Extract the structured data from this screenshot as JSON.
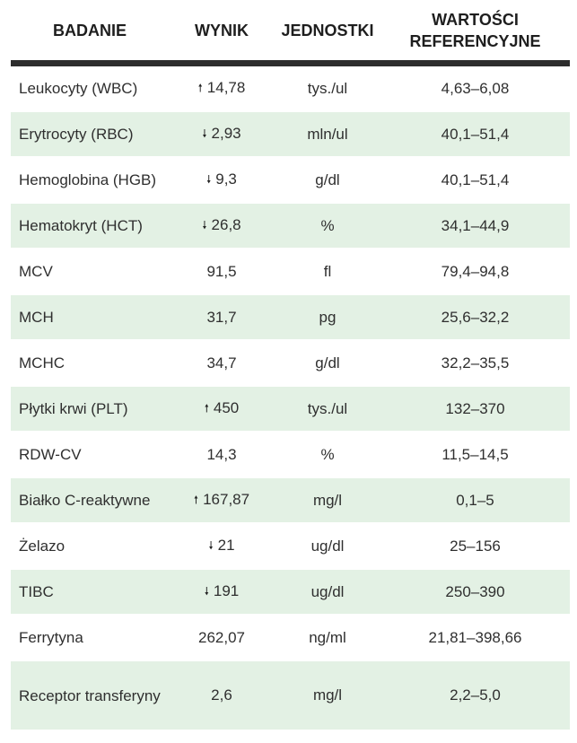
{
  "table": {
    "headers": {
      "test": "BADANIE",
      "result": "WYNIK",
      "units": "JEDNOSTKI",
      "reference_line1": "WARTOŚCI",
      "reference_line2": "REFERENCYJNE"
    },
    "arrow_glyphs": {
      "up": "🠕",
      "down": "🠗"
    },
    "rows": [
      {
        "test": "Leukocyty (WBC)",
        "flag": "up",
        "result": "14,78",
        "unit": "tys./ul",
        "reference": "4,63–6,08"
      },
      {
        "test": "Erytrocyty (RBC)",
        "flag": "down",
        "result": "2,93",
        "unit": "mln/ul",
        "reference": "40,1–51,4"
      },
      {
        "test": "Hemoglobina (HGB)",
        "flag": "down",
        "result": "9,3",
        "unit": "g/dl",
        "reference": "40,1–51,4"
      },
      {
        "test": "Hematokryt (HCT)",
        "flag": "down",
        "result": "26,8",
        "unit": "%",
        "reference": "34,1–44,9"
      },
      {
        "test": "MCV",
        "flag": "",
        "result": "91,5",
        "unit": "fl",
        "reference": "79,4–94,8"
      },
      {
        "test": "MCH",
        "flag": "",
        "result": "31,7",
        "unit": "pg",
        "reference": "25,6–32,2"
      },
      {
        "test": "MCHC",
        "flag": "",
        "result": "34,7",
        "unit": "g/dl",
        "reference": "32,2–35,5"
      },
      {
        "test": "Płytki krwi (PLT)",
        "flag": "up",
        "result": "450",
        "unit": "tys./ul",
        "reference": "132–370"
      },
      {
        "test": "RDW-CV",
        "flag": "",
        "result": "14,3",
        "unit": "%",
        "reference": "11,5–14,5"
      },
      {
        "test": "Białko C-reaktywne",
        "flag": "up",
        "result": "167,87",
        "unit": "mg/l",
        "reference": "0,1–5"
      },
      {
        "test": "Żelazo",
        "flag": "down",
        "result": "21",
        "unit": "ug/dl",
        "reference": "25–156"
      },
      {
        "test": "TIBC",
        "flag": "down",
        "result": "191",
        "unit": "ug/dl",
        "reference": "250–390"
      },
      {
        "test": "Ferrytyna",
        "flag": "",
        "result": "262,07",
        "unit": "ng/ml",
        "reference": "21,81–398,66"
      },
      {
        "test": "Receptor transferyny",
        "flag": "",
        "result": "2,6",
        "unit": "mg/l",
        "reference": "2,2–5,0"
      }
    ]
  },
  "colors": {
    "row_shade": "#e3f1e4",
    "header_rule": "#2d2d2d",
    "text": "#2f2f2f"
  }
}
